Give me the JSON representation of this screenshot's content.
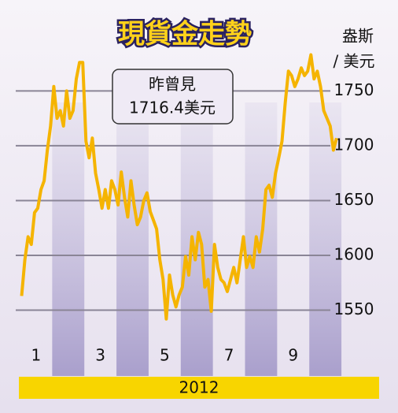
{
  "chart_data": {
    "type": "line",
    "title": "現貨金走勢",
    "y_unit": [
      "盎斯",
      "/ 美元"
    ],
    "annotation": [
      "昨曾見",
      "1716.4美元"
    ],
    "x_label": "2012",
    "x": [
      0.55,
      0.65,
      0.75,
      0.85,
      0.95,
      1.05,
      1.15,
      1.25,
      1.35,
      1.45,
      1.55,
      1.65,
      1.75,
      1.85,
      1.95,
      2.05,
      2.15,
      2.25,
      2.35,
      2.45,
      2.55,
      2.65,
      2.75,
      2.85,
      2.95,
      3.05,
      3.15,
      3.25,
      3.35,
      3.45,
      3.55,
      3.65,
      3.75,
      3.85,
      3.95,
      4.05,
      4.15,
      4.25,
      4.35,
      4.45,
      4.55,
      4.65,
      4.75,
      4.85,
      4.95,
      5.05,
      5.15,
      5.25,
      5.35,
      5.45,
      5.55,
      5.65,
      5.75,
      5.85,
      5.95,
      6.05,
      6.15,
      6.25,
      6.35,
      6.45,
      6.55,
      6.65,
      6.75,
      6.85,
      6.95,
      7.05,
      7.15,
      7.25,
      7.35,
      7.45,
      7.55,
      7.65,
      7.75,
      7.85,
      7.95,
      8.05,
      8.15,
      8.25,
      8.35,
      8.45,
      8.55,
      8.65,
      8.75,
      8.85,
      8.95,
      9.05,
      9.15,
      9.25,
      9.35,
      9.45,
      9.55,
      9.65,
      9.75,
      9.85,
      9.95,
      10.05,
      10.15,
      10.25,
      10.35
    ],
    "series": [
      {
        "color": "#f5b400",
        "values": [
          1563,
          1596,
          1617,
          1610,
          1639,
          1643,
          1660,
          1668,
          1696,
          1718,
          1754,
          1725,
          1732,
          1718,
          1750,
          1725,
          1732,
          1761,
          1776,
          1776,
          1704,
          1689,
          1707,
          1675,
          1660,
          1643,
          1660,
          1643,
          1668,
          1660,
          1646,
          1676,
          1653,
          1635,
          1668,
          1646,
          1628,
          1635,
          1650,
          1657,
          1640,
          1632,
          1624,
          1596,
          1578,
          1542,
          1582,
          1564,
          1553,
          1564,
          1571,
          1599,
          1582,
          1617,
          1596,
          1621,
          1610,
          1571,
          1578,
          1549,
          1610,
          1589,
          1578,
          1575,
          1567,
          1578,
          1589,
          1575,
          1596,
          1617,
          1589,
          1599,
          1589,
          1617,
          1603,
          1624,
          1660,
          1664,
          1653,
          1675,
          1689,
          1704,
          1739,
          1768,
          1764,
          1754,
          1761,
          1771,
          1764,
          1768,
          1783,
          1761,
          1768,
          1754,
          1732,
          1725,
          1718,
          1696,
          1707
        ]
      }
    ],
    "xlim": [
      0.5,
      11
    ],
    "xticks": [
      1,
      3,
      5,
      7,
      9
    ],
    "ylim": [
      1490,
      1820
    ],
    "yticks": [
      1550,
      1600,
      1650,
      1700,
      1750
    ],
    "grid": true
  }
}
